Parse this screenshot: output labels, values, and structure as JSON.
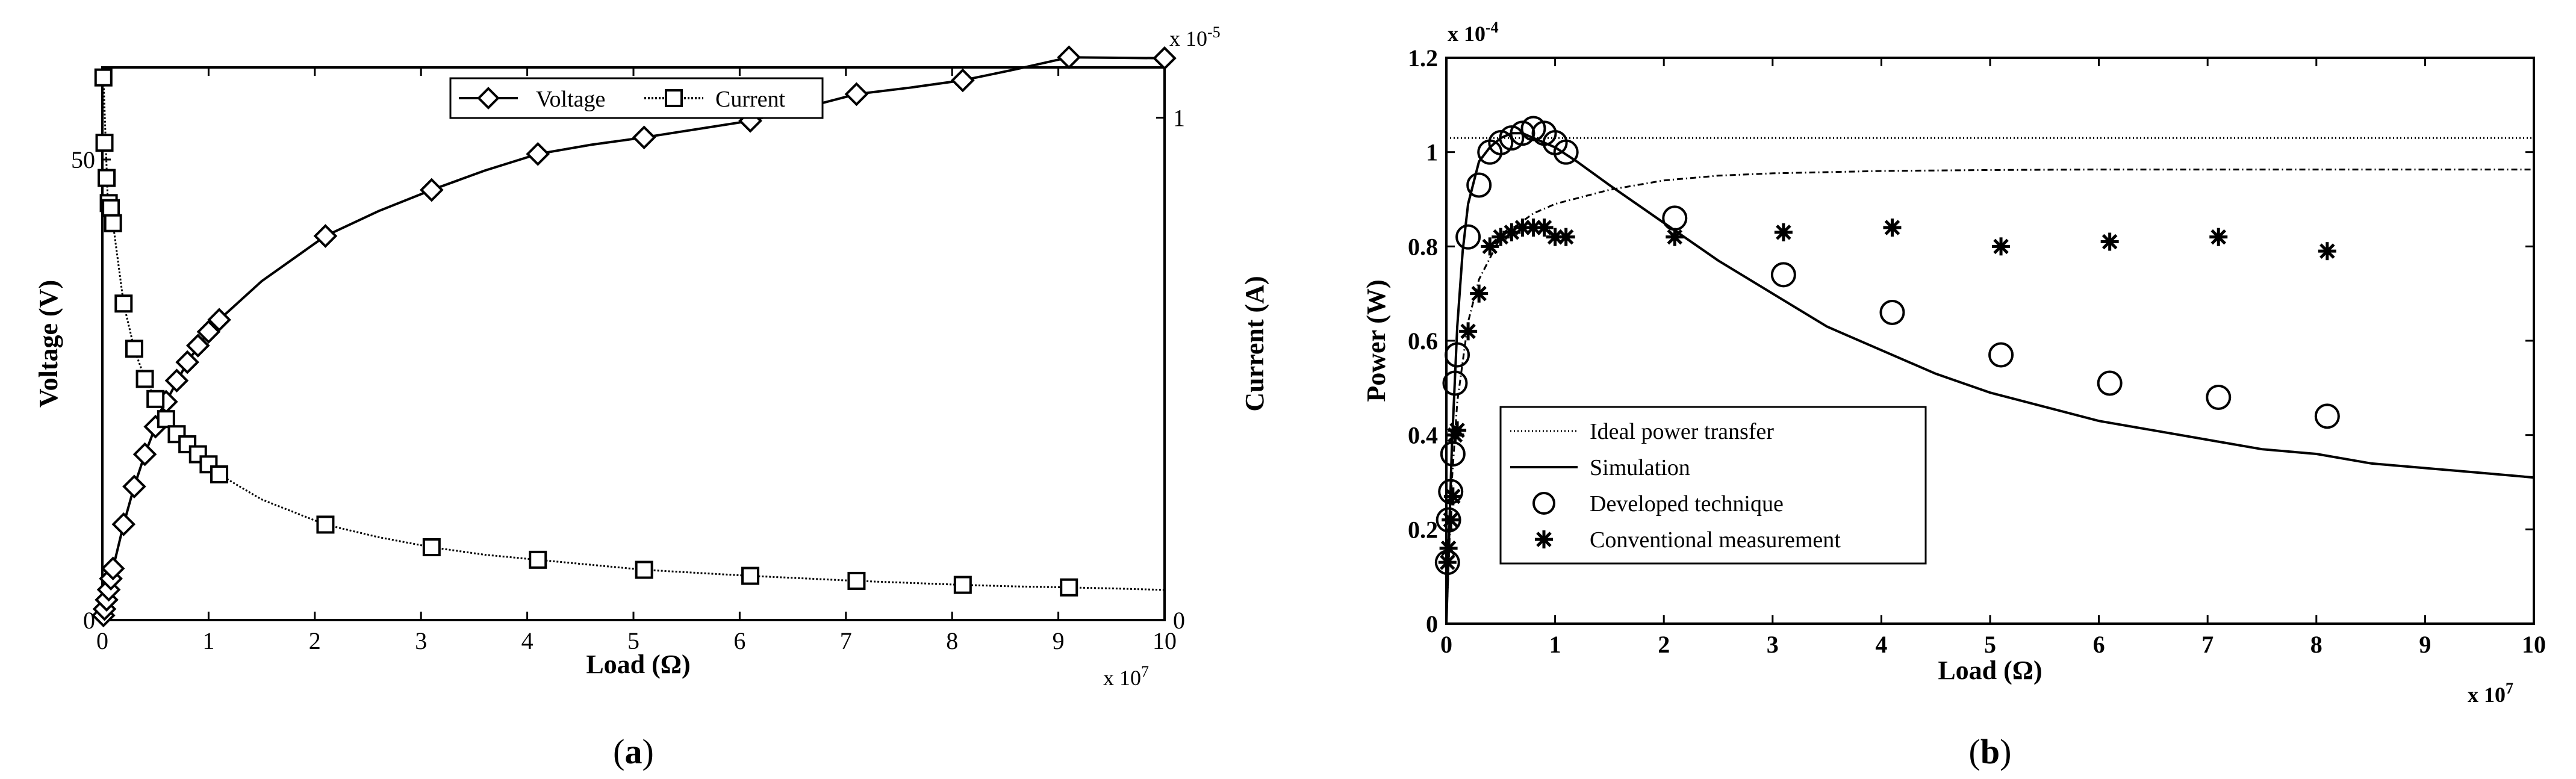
{
  "chart_data": [
    {
      "type": "line",
      "caption": "a",
      "xlabel": "Load (Ω)",
      "x_multiplier": "x 10",
      "x_multiplier_exp": "7",
      "ylabel_left": "Voltage (V)",
      "ylabel_right": "Current (A)",
      "right_multiplier": "x 10",
      "right_multiplier_exp": "-5",
      "xlim": [
        0,
        10
      ],
      "ylim_left": [
        0,
        60
      ],
      "ylim_right": [
        0,
        1.1
      ],
      "x_ticks": [
        "0",
        "1",
        "2",
        "3",
        "4",
        "5",
        "6",
        "7",
        "8",
        "9",
        "10"
      ],
      "y_left_ticks": [
        "0",
        "50"
      ],
      "y_right_ticks": [
        "0",
        "1"
      ],
      "legend": [
        "Voltage",
        "Current"
      ],
      "legend_position": "top-center",
      "series": [
        {
          "name": "Voltage",
          "axis": "left",
          "marker": "diamond",
          "x": [
            0.01,
            0.02,
            0.04,
            0.06,
            0.08,
            0.1,
            0.2,
            0.3,
            0.4,
            0.5,
            0.6,
            0.7,
            0.8,
            0.9,
            1.0,
            1.1,
            2.1,
            3.1,
            4.1,
            5.1,
            6.1,
            7.1,
            8.1,
            9.1,
            10.0
          ],
          "values": [
            0.5,
            1.2,
            2.2,
            3.3,
            4.5,
            5.6,
            10.4,
            14.5,
            18.0,
            21.0,
            23.7,
            26.0,
            28.0,
            29.8,
            31.3,
            32.6,
            41.7,
            46.7,
            50.6,
            52.4,
            54.2,
            57.1,
            58.6,
            61.1,
            61.0
          ],
          "curve": {
            "x": [
              0,
              0.05,
              0.1,
              0.2,
              0.3,
              0.4,
              0.5,
              0.6,
              0.8,
              1.0,
              1.1,
              1.5,
              2.1,
              2.6,
              3.1,
              3.6,
              4.1,
              4.6,
              5.1,
              5.6,
              6.1,
              6.6,
              7.1,
              7.6,
              8.1,
              8.6,
              9.1,
              9.5,
              10.0
            ],
            "values": [
              0,
              2.8,
              5.6,
              10.4,
              14.5,
              18.0,
              21.0,
              23.7,
              28.0,
              31.3,
              32.6,
              36.8,
              41.7,
              44.4,
              46.7,
              48.8,
              50.6,
              51.6,
              52.4,
              53.3,
              54.2,
              55.6,
              57.1,
              57.8,
              58.6,
              59.8,
              61.1,
              61.05,
              61.0
            ]
          }
        },
        {
          "name": "Current",
          "axis": "right",
          "marker": "square",
          "x": [
            0.01,
            0.02,
            0.04,
            0.06,
            0.08,
            0.1,
            0.2,
            0.3,
            0.4,
            0.5,
            0.6,
            0.7,
            0.8,
            0.9,
            1.0,
            1.1,
            2.1,
            3.1,
            4.1,
            5.1,
            6.1,
            7.1,
            8.1,
            9.1
          ],
          "values": [
            1.08,
            0.95,
            0.88,
            0.83,
            0.82,
            0.79,
            0.63,
            0.54,
            0.48,
            0.44,
            0.4,
            0.37,
            0.35,
            0.33,
            0.31,
            0.29,
            0.19,
            0.145,
            0.12,
            0.1,
            0.088,
            0.078,
            0.07,
            0.065
          ],
          "curve": {
            "x": [
              0.01,
              0.05,
              0.1,
              0.2,
              0.3,
              0.4,
              0.5,
              0.6,
              0.8,
              1.0,
              1.1,
              1.5,
              2.1,
              2.6,
              3.1,
              3.6,
              4.1,
              4.6,
              5.1,
              5.6,
              6.1,
              6.6,
              7.1,
              7.6,
              8.1,
              8.6,
              9.1,
              9.5,
              10.0
            ],
            "values": [
              1.08,
              0.84,
              0.79,
              0.63,
              0.54,
              0.48,
              0.44,
              0.4,
              0.35,
              0.31,
              0.29,
              0.24,
              0.19,
              0.165,
              0.145,
              0.13,
              0.12,
              0.11,
              0.1,
              0.094,
              0.088,
              0.083,
              0.078,
              0.074,
              0.07,
              0.067,
              0.065,
              0.063,
              0.06
            ]
          }
        }
      ]
    },
    {
      "type": "line",
      "caption": "b",
      "xlabel": "Load (Ω)",
      "x_multiplier": "x 10",
      "x_multiplier_exp": "7",
      "ylabel": "Power (W)",
      "y_multiplier": "x 10",
      "y_multiplier_exp": "-4",
      "xlim": [
        0,
        10
      ],
      "ylim": [
        0,
        1.2
      ],
      "x_ticks": [
        "0",
        "1",
        "2",
        "3",
        "4",
        "5",
        "6",
        "7",
        "8",
        "9",
        "10"
      ],
      "y_ticks": [
        "0",
        "0.2",
        "0.4",
        "0.6",
        "0.8",
        "1",
        "1.2"
      ],
      "legend": [
        "Ideal power transfer",
        "Simulation",
        "Developed technique",
        "Conventional measurement"
      ],
      "legend_position": "bottom-left",
      "series": [
        {
          "name": "Ideal power transfer",
          "style": "dotted",
          "x": [
            0,
            10
          ],
          "values": [
            1.03,
            1.03
          ]
        },
        {
          "name": "Simulation",
          "style": "solid",
          "x": [
            0,
            0.05,
            0.1,
            0.15,
            0.2,
            0.3,
            0.4,
            0.5,
            0.6,
            0.7,
            0.8,
            0.9,
            1.0,
            1.2,
            1.5,
            2.0,
            2.5,
            3.0,
            3.5,
            4.0,
            4.5,
            5.0,
            5.5,
            6.0,
            6.5,
            7.0,
            7.5,
            8.0,
            8.5,
            9.0,
            9.5,
            10.0
          ],
          "values": [
            0.0,
            0.37,
            0.63,
            0.79,
            0.89,
            0.98,
            1.01,
            1.03,
            1.04,
            1.04,
            1.03,
            1.02,
            1.01,
            0.98,
            0.93,
            0.85,
            0.77,
            0.7,
            0.63,
            0.58,
            0.53,
            0.49,
            0.46,
            0.43,
            0.41,
            0.39,
            0.37,
            0.36,
            0.34,
            0.33,
            0.32,
            0.31
          ]
        },
        {
          "name": "Conventional measurement curve",
          "style": "dash-dot",
          "x": [
            0,
            0.05,
            0.1,
            0.2,
            0.3,
            0.5,
            0.8,
            1.0,
            1.5,
            2.0,
            2.5,
            3.0,
            4.0,
            5.0,
            6.0,
            7.0,
            8.0,
            9.0,
            10.0
          ],
          "values": [
            0.0,
            0.3,
            0.47,
            0.64,
            0.73,
            0.82,
            0.87,
            0.89,
            0.92,
            0.94,
            0.95,
            0.955,
            0.96,
            0.962,
            0.963,
            0.963,
            0.963,
            0.963,
            0.963
          ]
        },
        {
          "name": "Developed technique",
          "marker": "circle",
          "x": [
            0.01,
            0.02,
            0.04,
            0.06,
            0.08,
            0.1,
            0.2,
            0.3,
            0.4,
            0.5,
            0.6,
            0.7,
            0.8,
            0.9,
            1.0,
            1.1,
            2.1,
            3.1,
            4.1,
            5.1,
            6.1,
            7.1,
            8.1
          ],
          "values": [
            0.13,
            0.22,
            0.28,
            0.36,
            0.51,
            0.57,
            0.82,
            0.93,
            1.0,
            1.02,
            1.03,
            1.04,
            1.05,
            1.04,
            1.02,
            1.0,
            0.86,
            0.74,
            0.66,
            0.57,
            0.51,
            0.48,
            0.44
          ]
        },
        {
          "name": "Conventional measurement",
          "marker": "star",
          "x": [
            0.01,
            0.02,
            0.04,
            0.06,
            0.08,
            0.1,
            0.2,
            0.3,
            0.4,
            0.5,
            0.6,
            0.7,
            0.8,
            0.9,
            1.0,
            1.1,
            2.1,
            3.1,
            4.1,
            5.1,
            6.1,
            7.1,
            8.1
          ],
          "values": [
            0.13,
            0.16,
            0.22,
            0.27,
            0.4,
            0.41,
            0.62,
            0.7,
            0.8,
            0.82,
            0.83,
            0.84,
            0.84,
            0.84,
            0.82,
            0.82,
            0.82,
            0.83,
            0.84,
            0.8,
            0.81,
            0.82,
            0.79
          ]
        }
      ]
    }
  ]
}
